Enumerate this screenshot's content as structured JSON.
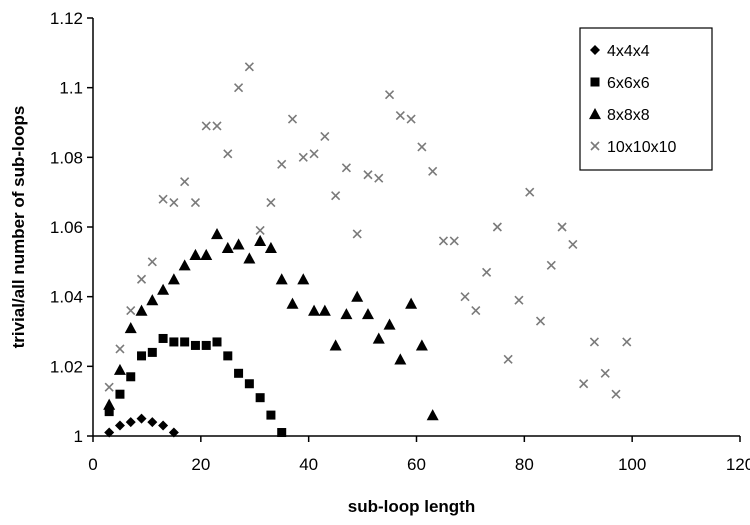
{
  "chart_data": {
    "type": "scatter",
    "title": "",
    "xlabel": "sub-loop length",
    "ylabel": "trivial/all number of sub-loops",
    "xlim": [
      0,
      120
    ],
    "ylim": [
      1,
      1.12
    ],
    "xticks": [
      0,
      20,
      40,
      60,
      80,
      100,
      120
    ],
    "yticks": [
      1,
      1.02,
      1.04,
      1.06,
      1.08,
      1.1,
      1.12
    ],
    "xtick_labels": [
      "0",
      "20",
      "40",
      "60",
      "80",
      "100",
      "120"
    ],
    "ytick_labels": [
      "1",
      "1.02",
      "1.04",
      "1.06",
      "1.08",
      "1.1",
      "1.12"
    ],
    "grid": false,
    "legend_position": "top-right",
    "series": [
      {
        "name": "4x4x4",
        "marker": "diamond",
        "color": "#000000",
        "x": [
          3,
          5,
          7,
          9,
          11,
          13,
          15
        ],
        "y": [
          1.001,
          1.003,
          1.004,
          1.005,
          1.004,
          1.003,
          1.001
        ]
      },
      {
        "name": "6x6x6",
        "marker": "square",
        "color": "#000000",
        "x": [
          3,
          5,
          7,
          9,
          11,
          13,
          15,
          17,
          19,
          21,
          23,
          25,
          27,
          29,
          31,
          33,
          35
        ],
        "y": [
          1.007,
          1.012,
          1.017,
          1.023,
          1.024,
          1.028,
          1.027,
          1.027,
          1.026,
          1.026,
          1.027,
          1.023,
          1.018,
          1.015,
          1.011,
          1.006,
          1.001
        ]
      },
      {
        "name": "8x8x8",
        "marker": "triangle",
        "color": "#000000",
        "x": [
          3,
          5,
          7,
          9,
          11,
          13,
          15,
          17,
          19,
          21,
          23,
          25,
          27,
          29,
          31,
          33,
          35,
          37,
          39,
          41,
          43,
          45,
          47,
          49,
          51,
          53,
          55,
          57,
          59,
          61,
          63
        ],
        "y": [
          1.009,
          1.019,
          1.031,
          1.036,
          1.039,
          1.042,
          1.045,
          1.049,
          1.052,
          1.052,
          1.058,
          1.054,
          1.055,
          1.051,
          1.056,
          1.054,
          1.045,
          1.038,
          1.045,
          1.036,
          1.036,
          1.026,
          1.035,
          1.04,
          1.035,
          1.028,
          1.032,
          1.022,
          1.038,
          1.026,
          1.006
        ]
      },
      {
        "name": "10x10x10",
        "marker": "x",
        "color": "#7a7a7a",
        "x": [
          3,
          5,
          7,
          9,
          11,
          13,
          15,
          17,
          19,
          21,
          23,
          25,
          27,
          29,
          31,
          33,
          35,
          37,
          39,
          41,
          43,
          45,
          47,
          49,
          51,
          53,
          55,
          57,
          59,
          61,
          63,
          65,
          67,
          69,
          71,
          73,
          75,
          77,
          79,
          81,
          83,
          85,
          87,
          89,
          91,
          93,
          95,
          97,
          99
        ],
        "y": [
          1.014,
          1.025,
          1.036,
          1.045,
          1.05,
          1.068,
          1.067,
          1.073,
          1.067,
          1.089,
          1.089,
          1.081,
          1.1,
          1.106,
          1.059,
          1.067,
          1.078,
          1.091,
          1.08,
          1.081,
          1.086,
          1.069,
          1.077,
          1.058,
          1.075,
          1.074,
          1.098,
          1.092,
          1.091,
          1.083,
          1.076,
          1.056,
          1.056,
          1.04,
          1.036,
          1.047,
          1.06,
          1.022,
          1.039,
          1.07,
          1.033,
          1.049,
          1.06,
          1.055,
          1.015,
          1.027,
          1.018,
          1.012,
          1.027
        ]
      }
    ]
  }
}
